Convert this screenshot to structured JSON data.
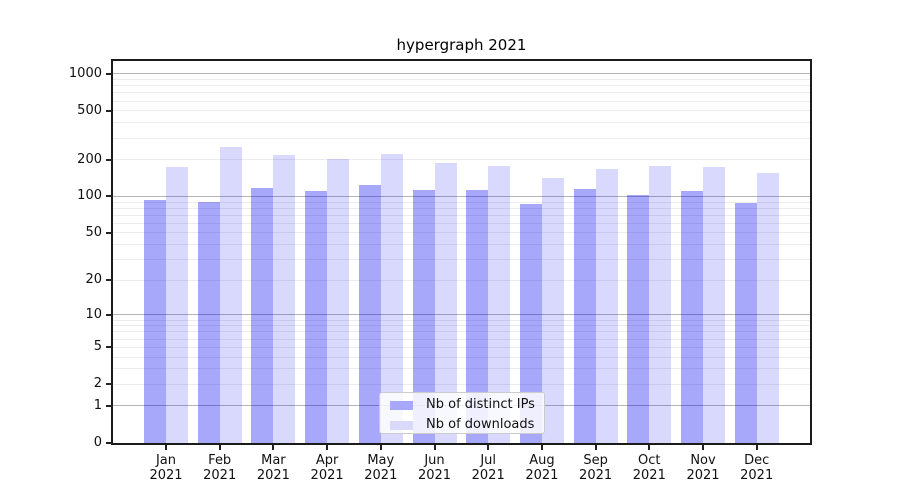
{
  "chart_data": {
    "type": "bar",
    "title": "hypergraph 2021",
    "categories": [
      "Jan 2021",
      "Feb 2021",
      "Mar 2021",
      "Apr 2021",
      "May 2021",
      "Jun 2021",
      "Jul 2021",
      "Aug 2021",
      "Sep 2021",
      "Oct 2021",
      "Nov 2021",
      "Dec 2021"
    ],
    "series": [
      {
        "name": "Nb of distinct IPs",
        "color": "rgba(0,0,240,0.34)",
        "legend_color": "#a8a8fa",
        "values": [
          94,
          90,
          118,
          110,
          124,
          114,
          113,
          86,
          115,
          103,
          110,
          89
        ]
      },
      {
        "name": "Nb of downloads",
        "color": "rgba(0,0,240,0.15)",
        "legend_color": "#d9d9fc",
        "values": [
          174,
          253,
          219,
          203,
          223,
          189,
          179,
          143,
          168,
          176,
          175,
          155
        ]
      }
    ],
    "xlabel": "",
    "ylabel": "",
    "yscale": "log1p",
    "ylim": [
      0,
      1270
    ],
    "yticks": [
      0,
      1,
      2,
      5,
      10,
      20,
      50,
      100,
      200,
      500,
      1000
    ],
    "ytick_labels": [
      "0",
      "1",
      "2",
      "5",
      "10",
      "20",
      "50",
      "100",
      "200",
      "500",
      "1000"
    ],
    "major_grid_values": [
      1,
      10,
      100,
      1000
    ],
    "grid": true,
    "legend_position": "inside lower-center",
    "colors": {
      "bar_dark": "#a8a8fa",
      "bar_light": "#d9d9fc",
      "grid_major": "#b5b5b5",
      "grid_minor": "#ececec",
      "spine": "#1b1b1b",
      "background": "#ffffff"
    }
  }
}
